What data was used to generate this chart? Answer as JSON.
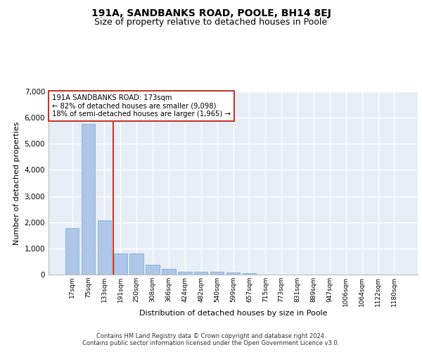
{
  "title_line1": "191A, SANDBANKS ROAD, POOLE, BH14 8EJ",
  "title_line2": "Size of property relative to detached houses in Poole",
  "xlabel": "Distribution of detached houses by size in Poole",
  "ylabel": "Number of detached properties",
  "bar_values": [
    1780,
    5750,
    2080,
    800,
    800,
    370,
    210,
    120,
    110,
    110,
    80,
    60,
    0,
    0,
    0,
    0,
    0,
    0,
    0,
    0,
    0
  ],
  "bin_labels": [
    "17sqm",
    "75sqm",
    "133sqm",
    "191sqm",
    "250sqm",
    "308sqm",
    "366sqm",
    "424sqm",
    "482sqm",
    "540sqm",
    "599sqm",
    "657sqm",
    "715sqm",
    "773sqm",
    "831sqm",
    "889sqm",
    "947sqm",
    "1006sqm",
    "1064sqm",
    "1122sqm",
    "1180sqm"
  ],
  "bar_color": "#aec6e8",
  "bar_edge_color": "#6aaad4",
  "vline_x": 3,
  "vline_color": "#c0392b",
  "annotation_text": "191A SANDBANKS ROAD: 173sqm\n← 82% of detached houses are smaller (9,098)\n18% of semi-detached houses are larger (1,965) →",
  "annotation_box_color": "#c0392b",
  "ylim": [
    0,
    7000
  ],
  "yticks": [
    0,
    1000,
    2000,
    3000,
    4000,
    5000,
    6000,
    7000
  ],
  "footer_line1": "Contains HM Land Registry data © Crown copyright and database right 2024.",
  "footer_line2": "Contains public sector information licensed under the Open Government Licence v3.0.",
  "background_color": "#e8eef6",
  "grid_color": "#ffffff",
  "title_fontsize": 10,
  "subtitle_fontsize": 9,
  "axis_fontsize": 8
}
